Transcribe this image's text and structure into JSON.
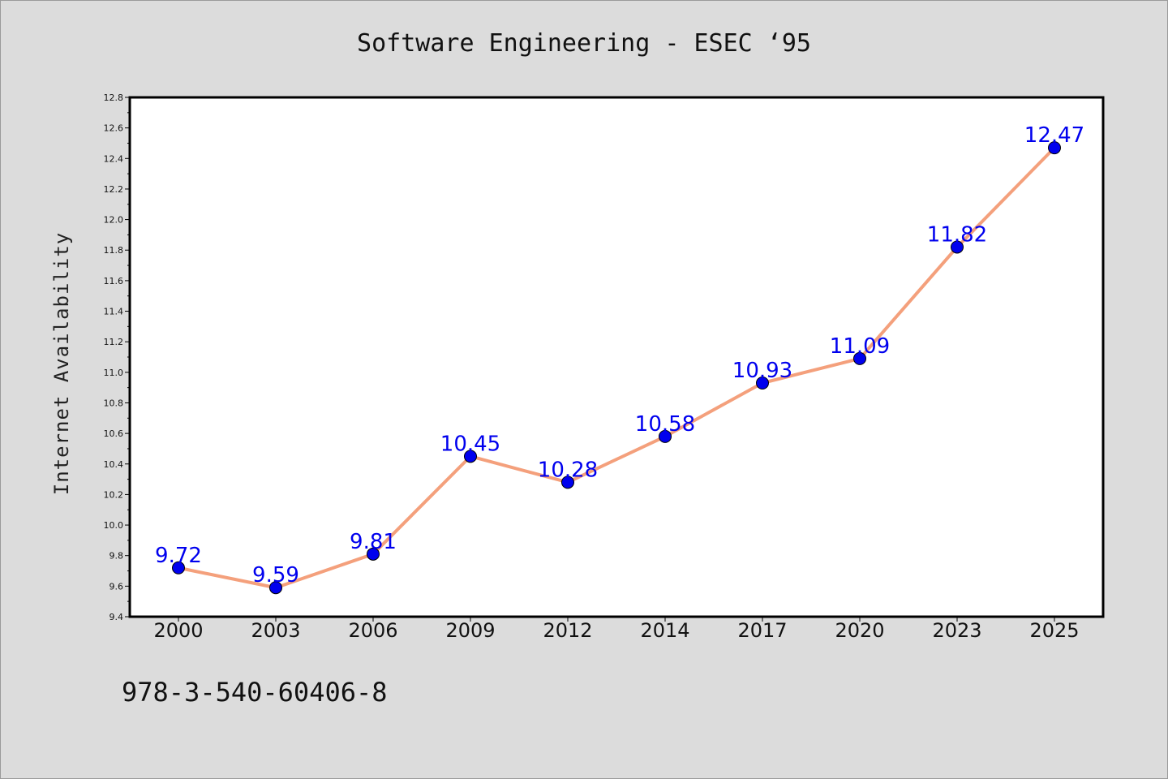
{
  "chart_data": {
    "type": "line",
    "title": "Software Engineering - ESEC  ‘95",
    "xlabel": "",
    "ylabel": "Internet Availability",
    "categories": [
      "2000",
      "2003",
      "2006",
      "2009",
      "2012",
      "2014",
      "2017",
      "2020",
      "2023",
      "2025"
    ],
    "values": [
      9.72,
      9.59,
      9.81,
      10.45,
      10.28,
      10.58,
      10.93,
      11.09,
      11.82,
      12.47
    ],
    "data_labels": [
      "9.72",
      "9.59",
      "9.81",
      "10.45",
      "10.28",
      "10.58",
      "10.93",
      "11.09",
      "11.82",
      "12.47"
    ],
    "ylim": [
      9.4,
      12.8
    ],
    "yticks": [
      "9.4",
      "9.6",
      "9.8",
      "10.0",
      "10.2",
      "10.4",
      "10.6",
      "10.8",
      "11.0",
      "11.2",
      "11.4",
      "11.6",
      "11.8",
      "12.0",
      "12.2",
      "12.4",
      "12.6",
      "12.8"
    ],
    "grid": false,
    "line_color": "#f4a07c",
    "marker_color": "#0000ee",
    "label_color": "#0000ee",
    "plot_background": "#ffffff",
    "page_background": "#dcdcdc"
  },
  "footnote": "978-3-540-60406-8"
}
